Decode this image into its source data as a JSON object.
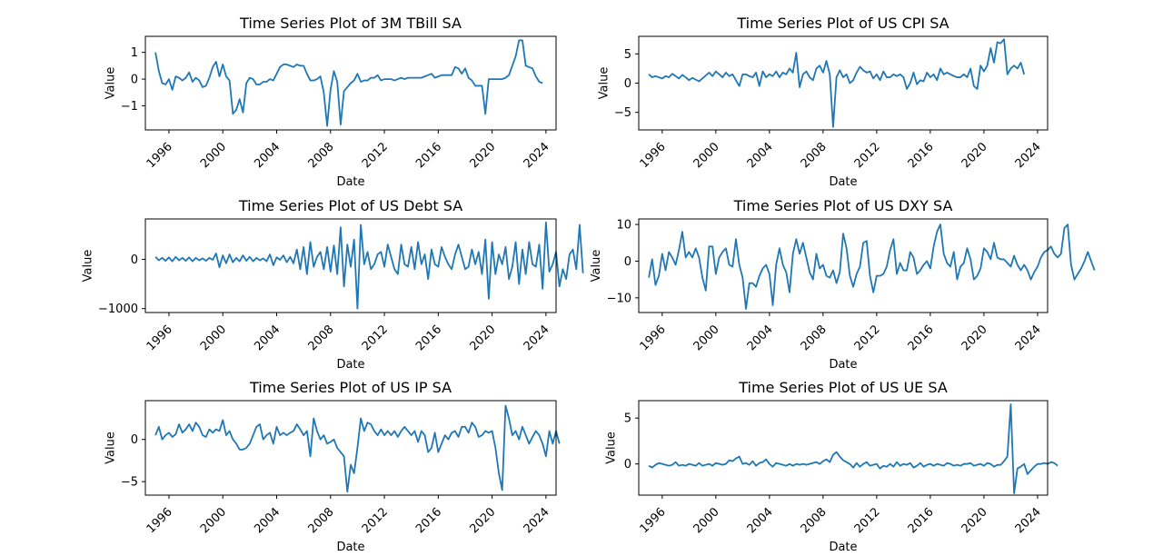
{
  "chart_data": [
    {
      "type": "line",
      "title": "Time Series Plot of 3M TBill SA",
      "xlabel": "Date",
      "ylabel": "Value",
      "xlim": [
        1994.25,
        2024.75
      ],
      "ylim": [
        -1.9,
        1.6
      ],
      "xticks": [
        1996,
        2000,
        2004,
        2008,
        2012,
        2016,
        2020,
        2024
      ],
      "yticks": [
        1,
        0,
        -1
      ],
      "color": "#1f77b4",
      "x_start": 1995,
      "x_step": 0.25,
      "values": [
        1.0,
        0.3,
        -0.15,
        -0.2,
        0.0,
        -0.4,
        0.1,
        0.05,
        -0.05,
        0.05,
        0.25,
        -0.1,
        0.05,
        -0.05,
        -0.3,
        -0.25,
        0.05,
        0.45,
        0.65,
        0.1,
        0.55,
        0.1,
        -0.05,
        -1.3,
        -1.15,
        -0.75,
        -1.25,
        -0.15,
        0.05,
        0.0,
        -0.2,
        -0.2,
        -0.1,
        -0.1,
        0.0,
        -0.05,
        0.2,
        0.45,
        0.55,
        0.55,
        0.5,
        0.45,
        0.55,
        0.5,
        0.5,
        0.2,
        -0.05,
        -0.05,
        0.0,
        0.1,
        -0.5,
        -1.75,
        -0.4,
        0.3,
        -0.1,
        -1.7,
        -0.45,
        -0.3,
        -0.15,
        -0.05,
        0.2,
        -0.1,
        -0.05,
        -0.05,
        0.05,
        0.05,
        0.15,
        -0.05,
        0.0,
        0.0,
        0.0,
        -0.05,
        0.0,
        0.05,
        0.0,
        0.05,
        0.05,
        0.05,
        0.05,
        0.05,
        0.1,
        0.15,
        0.2,
        0.05,
        0.1,
        0.15,
        0.15,
        0.15,
        0.15,
        0.45,
        0.4,
        0.2,
        0.4,
        0.05,
        -0.05,
        -0.25,
        -0.25,
        -0.25,
        -1.3,
        0.0,
        0.0,
        0.0,
        0.0,
        0.0,
        0.05,
        0.15,
        0.5,
        0.85,
        1.45,
        1.45,
        0.5,
        0.45,
        0.4,
        0.1,
        -0.1,
        -0.15
      ]
    },
    {
      "type": "line",
      "title": "Time Series Plot of US CPI SA",
      "xlabel": "Date",
      "ylabel": "Value",
      "xlim": [
        1994.25,
        2024.75
      ],
      "ylim": [
        -8.0,
        8.0
      ],
      "xticks": [
        1996,
        2000,
        2004,
        2008,
        2012,
        2016,
        2020,
        2024
      ],
      "yticks": [
        5,
        0,
        -5
      ],
      "color": "#1f77b4",
      "x_start": 1995,
      "x_step": 0.25,
      "values": [
        1.5,
        1.0,
        1.2,
        1.0,
        0.8,
        1.2,
        1.0,
        1.6,
        1.2,
        0.8,
        1.4,
        1.0,
        0.5,
        0.9,
        0.6,
        0.3,
        0.8,
        1.3,
        1.8,
        1.2,
        2.0,
        1.5,
        1.0,
        1.8,
        1.2,
        1.5,
        0.5,
        -0.5,
        1.5,
        1.5,
        1.2,
        1.0,
        1.8,
        -0.5,
        2.0,
        1.0,
        1.5,
        1.2,
        2.0,
        1.0,
        1.8,
        1.5,
        2.5,
        1.8,
        5.2,
        -0.7,
        1.5,
        2.0,
        1.0,
        0.5,
        2.5,
        3.0,
        1.8,
        3.8,
        1.5,
        -7.5,
        1.0,
        2.2,
        1.0,
        1.5,
        0.0,
        0.5,
        1.8,
        2.8,
        2.2,
        1.8,
        2.0,
        0.8,
        1.5,
        0.5,
        2.0,
        1.0,
        1.0,
        1.5,
        1.2,
        1.5,
        1.0,
        -1.0,
        0.0,
        1.8,
        -0.2,
        0.5,
        0.3,
        1.8,
        1.0,
        1.5,
        0.5,
        2.5,
        1.5,
        1.8,
        1.5,
        1.2,
        1.0,
        1.0,
        1.5,
        1.0,
        2.5,
        -0.5,
        -1.0,
        3.0,
        2.0,
        3.0,
        6.0,
        3.5,
        7.0,
        6.8,
        7.5,
        1.5,
        2.5,
        3.0,
        2.5,
        3.5,
        1.5
      ]
    },
    {
      "type": "line",
      "title": "Time Series Plot of US Debt SA",
      "xlabel": "Date",
      "ylabel": "Value",
      "xlim": [
        1994.25,
        2024.75
      ],
      "ylim": [
        -1080,
        820
      ],
      "xticks": [
        1996,
        2000,
        2004,
        2008,
        2012,
        2016,
        2020,
        2024
      ],
      "yticks": [
        0,
        -1000
      ],
      "color": "#1f77b4",
      "x_start": 1995,
      "x_step": 0.25,
      "values": [
        50,
        -20,
        30,
        -30,
        40,
        -40,
        50,
        -20,
        30,
        -30,
        40,
        -40,
        30,
        -20,
        20,
        -30,
        30,
        -10,
        120,
        -160,
        80,
        -80,
        100,
        -60,
        30,
        -40,
        80,
        -30,
        50,
        -40,
        30,
        -20,
        20,
        -40,
        100,
        -120,
        40,
        -10,
        80,
        -60,
        50,
        -80,
        200,
        -200,
        250,
        -300,
        350,
        -150,
        50,
        150,
        -200,
        250,
        -250,
        280,
        -300,
        650,
        -550,
        300,
        -150,
        400,
        -1000,
        700,
        -100,
        150,
        -200,
        -100,
        100,
        150,
        -150,
        300,
        50,
        -200,
        -300,
        300,
        -100,
        -150,
        250,
        -200,
        350,
        -100,
        100,
        -400,
        200,
        -100,
        -150,
        250,
        50,
        -100,
        -200,
        100,
        300,
        50,
        -200,
        -150,
        200,
        -100,
        150,
        -300,
        400,
        -800,
        350,
        -300,
        100,
        -100,
        250,
        -400,
        -150,
        350,
        -500,
        200,
        -300,
        350,
        -100,
        -150,
        300,
        -600,
        750,
        -250,
        -100,
        150,
        -550,
        -200,
        -400,
        100,
        200,
        -200,
        700,
        -280
      ]
    },
    {
      "type": "line",
      "title": "Time Series Plot of US DXY SA",
      "xlabel": "Date",
      "ylabel": "Value",
      "xlim": [
        1994.25,
        2024.75
      ],
      "ylim": [
        -14.0,
        11.5
      ],
      "xticks": [
        1996,
        2000,
        2004,
        2008,
        2012,
        2016,
        2020,
        2024
      ],
      "yticks": [
        10,
        0,
        -10
      ],
      "color": "#1f77b4",
      "x_start": 1995,
      "x_step": 0.25,
      "values": [
        -4.5,
        0.5,
        -6.5,
        -4.0,
        2.0,
        -2.5,
        2.5,
        1.0,
        -1.0,
        3.0,
        8.0,
        1.0,
        2.5,
        1.0,
        3.5,
        1.0,
        -4.5,
        -8.0,
        4.0,
        4.0,
        -3.5,
        1.0,
        2.5,
        3.5,
        -1.0,
        -1.5,
        6.0,
        -1.0,
        -4.5,
        -13.0,
        -6.0,
        -6.0,
        -7.0,
        -4.0,
        -2.0,
        -1.0,
        -3.5,
        -12.0,
        -1.0,
        3.5,
        -1.0,
        -3.0,
        -8.5,
        2.0,
        6.0,
        2.0,
        5.0,
        1.0,
        -3.0,
        -5.0,
        2.0,
        -2.0,
        -1.0,
        -4.0,
        -4.5,
        -2.5,
        -6.0,
        -3.0,
        7.5,
        3.5,
        -4.0,
        -7.0,
        -3.5,
        -1.5,
        5.0,
        5.5,
        -4.0,
        -8.5,
        -4.0,
        -4.0,
        -3.5,
        -1.5,
        3.0,
        6.0,
        -3.5,
        -0.5,
        -2.5,
        -2.5,
        2.5,
        1.0,
        -3.5,
        -2.5,
        -1.0,
        0.0,
        -2.0,
        4.0,
        8.0,
        10.0,
        2.0,
        -0.5,
        -1.5,
        2.5,
        -5.0,
        -1.5,
        -0.5,
        3.5,
        0.5,
        -5.0,
        -4.0,
        -2.0,
        3.5,
        2.5,
        0.5,
        5.0,
        1.0,
        0.5,
        0.5,
        -0.5,
        -1.5,
        1.5,
        -1.0,
        -2.5,
        -1.0,
        -2.5,
        -5.0,
        -3.0,
        -1.5,
        1.0,
        2.5,
        3.0,
        4.0,
        2.0,
        1.0,
        2.0,
        9.0,
        10.0,
        -1.0,
        -5.0,
        -3.5,
        -2.0,
        0.0,
        2.5,
        0.0,
        -2.5
      ]
    },
    {
      "type": "line",
      "title": "Time Series Plot of US IP SA",
      "xlabel": "Date",
      "ylabel": "Value",
      "xlim": [
        1994.25,
        2024.75
      ],
      "ylim": [
        -6.6,
        4.6
      ],
      "xticks": [
        1996,
        2000,
        2004,
        2008,
        2012,
        2016,
        2020,
        2024
      ],
      "yticks": [
        0,
        -5
      ],
      "color": "#1f77b4",
      "x_start": 1995,
      "x_step": 0.25,
      "values": [
        0.5,
        1.5,
        0.0,
        0.5,
        0.8,
        0.3,
        0.6,
        1.8,
        0.8,
        1.2,
        1.8,
        1.0,
        2.0,
        1.5,
        0.5,
        0.3,
        1.2,
        0.8,
        1.2,
        1.0,
        2.3,
        0.5,
        1.0,
        0.0,
        -0.5,
        -1.2,
        -1.2,
        -1.0,
        -0.5,
        0.5,
        1.5,
        1.8,
        0.0,
        0.5,
        0.8,
        -0.5,
        1.5,
        0.5,
        0.8,
        0.5,
        0.8,
        1.0,
        1.8,
        1.2,
        0.5,
        1.0,
        -2.0,
        2.5,
        1.0,
        0.0,
        0.5,
        -0.5,
        -0.3,
        0.0,
        -1.0,
        -1.5,
        -2.0,
        -6.2,
        -3.0,
        -4.0,
        -1.0,
        2.5,
        1.0,
        2.0,
        1.8,
        1.0,
        0.5,
        1.2,
        0.5,
        1.0,
        0.5,
        1.0,
        0.3,
        1.0,
        1.5,
        1.0,
        0.5,
        1.0,
        -0.3,
        1.0,
        0.5,
        -1.5,
        -1.0,
        0.8,
        -1.5,
        -0.5,
        0.5,
        0.0,
        0.8,
        1.0,
        0.3,
        1.5,
        1.5,
        0.8,
        2.0,
        1.5,
        0.3,
        0.5,
        1.0,
        0.8,
        1.0,
        -1.0,
        -4.0,
        -6.0,
        4.0,
        2.5,
        0.5,
        1.0,
        0.0,
        1.5,
        0.5,
        -0.5,
        0.3,
        1.0,
        0.5,
        -0.5,
        -2.0,
        1.0,
        -0.5,
        1.0,
        -0.5
      ]
    },
    {
      "type": "line",
      "title": "Time Series Plot of US UE SA",
      "xlabel": "Date",
      "ylabel": "Value",
      "xlim": [
        1994.25,
        2024.75
      ],
      "ylim": [
        -3.4,
        6.9
      ],
      "xticks": [
        1996,
        2000,
        2004,
        2008,
        2012,
        2016,
        2020,
        2024
      ],
      "yticks": [
        5,
        0
      ],
      "color": "#1f77b4",
      "x_start": 1995,
      "x_step": 0.25,
      "values": [
        -0.2,
        -0.4,
        -0.1,
        0.1,
        0.0,
        -0.1,
        -0.2,
        -0.1,
        0.2,
        -0.2,
        -0.1,
        -0.2,
        0.0,
        -0.1,
        -0.2,
        0.1,
        -0.2,
        -0.1,
        0.0,
        -0.2,
        0.1,
        0.0,
        -0.1,
        0.0,
        0.4,
        0.3,
        0.6,
        0.8,
        0.0,
        0.1,
        -0.1,
        0.3,
        -0.2,
        0.1,
        0.2,
        0.5,
        0.0,
        -0.3,
        0.1,
        0.0,
        -0.1,
        -0.2,
        0.0,
        -0.2,
        0.0,
        -0.1,
        0.0,
        -0.1,
        0.0,
        0.1,
        0.2,
        0.0,
        0.3,
        0.5,
        0.2,
        1.0,
        1.3,
        0.8,
        0.4,
        0.2,
        0.0,
        -0.4,
        0.1,
        -0.3,
        0.0,
        0.2,
        -0.2,
        -0.1,
        0.0,
        -0.5,
        -0.2,
        -0.3,
        0.0,
        -0.3,
        0.2,
        -0.2,
        0.0,
        -0.1,
        0.1,
        -0.4,
        -0.2,
        0.1,
        -0.3,
        -0.1,
        0.0,
        -0.2,
        0.0,
        -0.1,
        -0.2,
        0.1,
        0.0,
        -0.2,
        -0.1,
        -0.2,
        0.0,
        0.0,
        0.1,
        -0.2,
        -0.1,
        0.0,
        -0.2,
        0.1,
        0.0,
        -0.3,
        -0.1,
        -0.1,
        0.3,
        0.8,
        6.5,
        -3.2,
        -0.5,
        -0.3,
        0.0,
        -1.1,
        -0.7,
        -0.3,
        0.0,
        0.0,
        0.1,
        0.0,
        0.2,
        0.1,
        -0.2
      ]
    }
  ]
}
